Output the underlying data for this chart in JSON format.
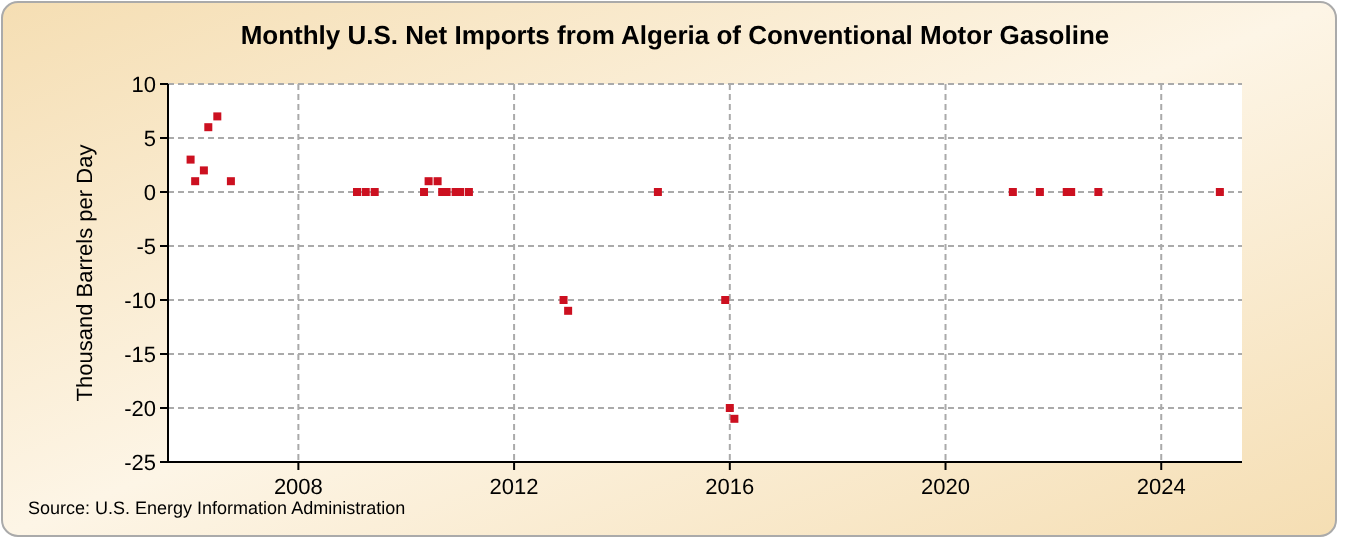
{
  "chart_data": {
    "type": "scatter",
    "title": "Monthly U.S. Net Imports from Algeria of Conventional Motor Gasoline",
    "ylabel": "Thousand Barrels per Day",
    "annotations": [
      "Source: U.S. Energy Information Administration"
    ],
    "x": [
      "2006-01",
      "2006-02",
      "2006-04",
      "2006-05",
      "2006-07",
      "2006-10",
      "2009-02",
      "2009-04",
      "2009-06",
      "2010-05",
      "2010-06",
      "2010-08",
      "2010-09",
      "2010-10",
      "2010-12",
      "2011-01",
      "2011-03",
      "2012-12",
      "2013-01",
      "2014-09",
      "2015-12",
      "2016-01",
      "2016-02",
      "2021-04",
      "2021-10",
      "2022-04",
      "2022-05",
      "2022-11",
      "2025-02"
    ],
    "series": [
      {
        "color": "#cc1020",
        "values": [
          3,
          1,
          2,
          6,
          7,
          1,
          0,
          0,
          0,
          0,
          1,
          1,
          0,
          0,
          0,
          0,
          0,
          -10,
          -11,
          0,
          -10,
          -20,
          -21,
          0,
          0,
          0,
          0,
          0,
          0
        ]
      }
    ],
    "xlim": [
      "2005-08",
      "2025-07"
    ],
    "xticks": [
      {
        "value": "2008",
        "label": "2008"
      },
      {
        "value": "2012",
        "label": "2012"
      },
      {
        "value": "2016",
        "label": "2016"
      },
      {
        "value": "2020",
        "label": "2020"
      },
      {
        "value": "2024",
        "label": "2024"
      }
    ],
    "ylim": [
      -25,
      10
    ],
    "yticks": [
      -25,
      -20,
      -15,
      -10,
      -5,
      0,
      5,
      10
    ],
    "grid": true,
    "marker": "square"
  }
}
